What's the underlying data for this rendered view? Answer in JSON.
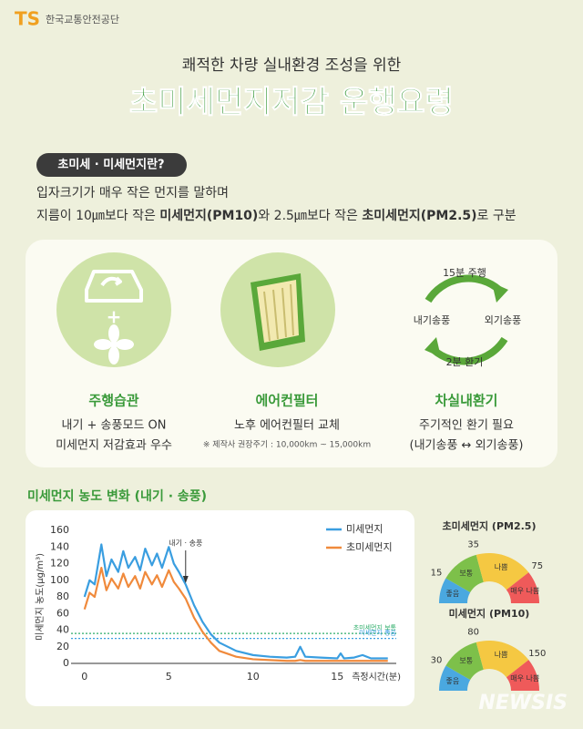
{
  "header": {
    "logo": "TS",
    "org": "한국교통안전공단",
    "subtitle": "쾌적한 차량 실내환경 조성을 위한",
    "title": "초미세먼지저감 운행요령"
  },
  "intro": {
    "heading": "초미세 · 미세먼지란?",
    "line1": "입자크기가 매우 작은 먼지를 말하며",
    "line2": [
      "지름이 10㎛보다 작은 ",
      "미세먼지(PM10)",
      "와 2.5㎛보다 작은 ",
      "초미세먼지(PM2.5)",
      "로 구분"
    ]
  },
  "tips": [
    {
      "title": "주행습관",
      "lines": [
        "내기 + 송풍모드 ON",
        "미세먼지 저감효과 우수"
      ]
    },
    {
      "title": "에어컨필터",
      "lines": [
        "노후 에어컨필터 교체"
      ],
      "note": "※ 제작사 권장주기 : 10,000km ~ 15,000km"
    },
    {
      "title": "차실내환기",
      "lines": [
        "주기적인 환기 필요",
        "(내기송풍 ↔ 외기송풍)"
      ],
      "cycle": [
        "15분 주행",
        "외기송풍",
        "2분 환기",
        "내기송풍"
      ]
    }
  ],
  "chart_data": {
    "type": "line",
    "title": "미세먼지 농도 변화 (내기 · 송풍)",
    "x": [
      0,
      0.3,
      0.6,
      1.0,
      1.3,
      1.6,
      2.0,
      2.3,
      2.6,
      3.0,
      3.3,
      3.6,
      4.0,
      4.3,
      4.6,
      5.0,
      5.3,
      5.6,
      6.0,
      6.5,
      7.0,
      7.5,
      8.0,
      9,
      10,
      11,
      12,
      12.5,
      12.8,
      13.1,
      14,
      15,
      15.2,
      15.4,
      16,
      16.5,
      17,
      18
    ],
    "series": [
      {
        "name": "미세먼지",
        "color": "#3a9ee0",
        "values": [
          80,
          100,
          95,
          143,
          105,
          125,
          110,
          135,
          115,
          128,
          112,
          138,
          118,
          132,
          115,
          140,
          120,
          110,
          95,
          70,
          50,
          35,
          25,
          15,
          10,
          8,
          7,
          8,
          20,
          8,
          7,
          6,
          12,
          6,
          7,
          10,
          6,
          6
        ]
      },
      {
        "name": "초미세먼지",
        "color": "#f08a3c",
        "values": [
          65,
          85,
          80,
          115,
          88,
          102,
          90,
          108,
          92,
          105,
          90,
          110,
          95,
          106,
          92,
          112,
          98,
          90,
          78,
          55,
          38,
          25,
          15,
          8,
          5,
          4,
          3,
          3,
          4,
          3,
          3,
          3,
          3,
          3,
          3,
          3,
          3,
          3
        ]
      }
    ],
    "xlim": [
      -0.8,
      18.5
    ],
    "xticks": [
      0,
      5,
      10,
      15
    ],
    "xlabel": "측정시간(분)",
    "ylim": [
      0,
      160
    ],
    "yticks": [
      0,
      20,
      40,
      60,
      80,
      100,
      120,
      140,
      160
    ],
    "ylabel": "미세먼지 농도(μg/m³)",
    "hlines": [
      {
        "value": 36,
        "label": "초미세먼지 보통",
        "color": "#2fae6a"
      },
      {
        "value": 30,
        "label": "미세먼지 좋음",
        "color": "#3a9ee0"
      }
    ],
    "annotation": {
      "text": "내기 · 송풍",
      "x": 6
    }
  },
  "gauges": [
    {
      "title": "초미세먼지 (PM2.5)",
      "ticks": [
        15,
        35,
        75
      ],
      "levels": [
        "좋음",
        "보통",
        "나쁨",
        "매우 나쁨"
      ]
    },
    {
      "title": "미세먼지 (PM10)",
      "ticks": [
        30,
        80,
        150
      ],
      "levels": [
        "좋음",
        "보통",
        "나쁨",
        "매우 나쁨"
      ]
    }
  ],
  "watermark": "NEWSIS"
}
